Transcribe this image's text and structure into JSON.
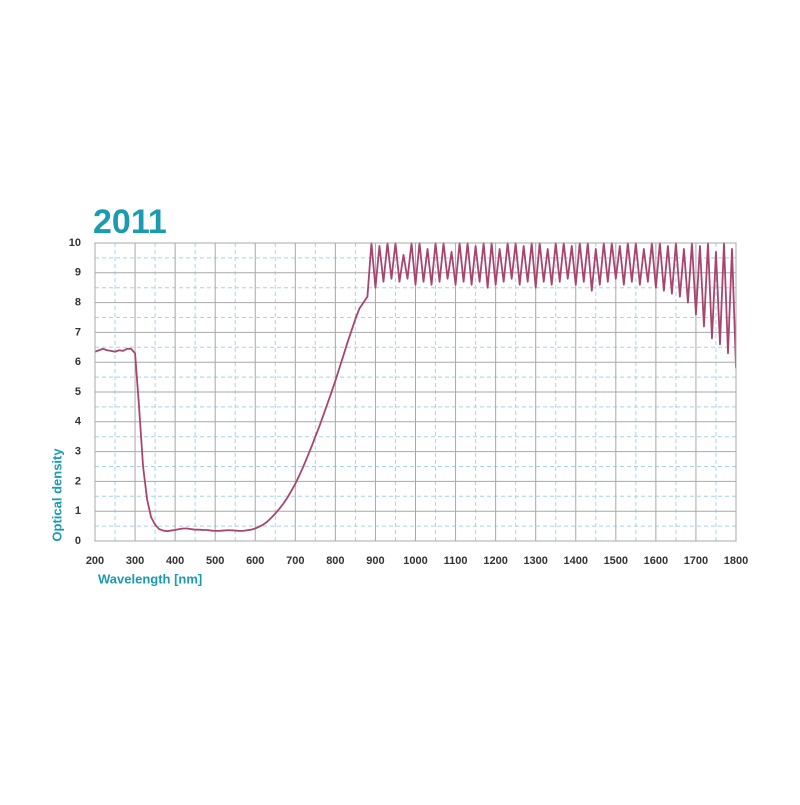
{
  "chart_data": {
    "type": "line",
    "title": "2011",
    "x_label": "Wavelength [nm]",
    "y_label": "Optical density",
    "xlim": [
      200,
      1800
    ],
    "ylim": [
      0,
      10
    ],
    "xticks": [
      200,
      300,
      400,
      500,
      600,
      700,
      800,
      900,
      1000,
      1100,
      1200,
      1300,
      1400,
      1500,
      1600,
      1700,
      1800
    ],
    "yticks": [
      0,
      1,
      2,
      3,
      4,
      5,
      6,
      7,
      8,
      9,
      10
    ],
    "grid": true,
    "series": [
      {
        "color": "#a8456f",
        "x": [
          200,
          210,
          220,
          230,
          240,
          250,
          260,
          270,
          280,
          290,
          300,
          310,
          320,
          330,
          340,
          350,
          360,
          370,
          380,
          390,
          400,
          410,
          420,
          430,
          440,
          450,
          460,
          470,
          480,
          490,
          500,
          510,
          520,
          530,
          540,
          550,
          560,
          570,
          580,
          590,
          600,
          610,
          620,
          630,
          640,
          650,
          660,
          670,
          680,
          690,
          700,
          710,
          720,
          730,
          740,
          750,
          760,
          770,
          780,
          790,
          800,
          810,
          820,
          830,
          840,
          850,
          860,
          870,
          880,
          890,
          900,
          910,
          920,
          930,
          940,
          950,
          960,
          970,
          980,
          990,
          1000,
          1010,
          1020,
          1030,
          1040,
          1050,
          1060,
          1070,
          1080,
          1090,
          1100,
          1110,
          1120,
          1130,
          1140,
          1150,
          1160,
          1170,
          1180,
          1190,
          1200,
          1210,
          1220,
          1230,
          1240,
          1250,
          1260,
          1270,
          1280,
          1290,
          1300,
          1310,
          1320,
          1330,
          1340,
          1350,
          1360,
          1370,
          1380,
          1390,
          1400,
          1410,
          1420,
          1430,
          1440,
          1450,
          1460,
          1470,
          1480,
          1490,
          1500,
          1510,
          1520,
          1530,
          1540,
          1550,
          1560,
          1570,
          1580,
          1590,
          1600,
          1610,
          1620,
          1630,
          1640,
          1650,
          1660,
          1670,
          1680,
          1690,
          1700,
          1710,
          1720,
          1730,
          1740,
          1750,
          1760,
          1770,
          1780,
          1790,
          1800
        ],
        "values": [
          6.35,
          6.4,
          6.45,
          6.4,
          6.38,
          6.35,
          6.4,
          6.38,
          6.45,
          6.45,
          6.3,
          4.5,
          2.5,
          1.4,
          0.8,
          0.55,
          0.4,
          0.35,
          0.33,
          0.35,
          0.37,
          0.4,
          0.42,
          0.42,
          0.4,
          0.38,
          0.38,
          0.37,
          0.37,
          0.35,
          0.34,
          0.34,
          0.35,
          0.36,
          0.36,
          0.35,
          0.34,
          0.34,
          0.36,
          0.38,
          0.42,
          0.48,
          0.55,
          0.65,
          0.78,
          0.92,
          1.08,
          1.25,
          1.45,
          1.68,
          1.92,
          2.2,
          2.5,
          2.82,
          3.15,
          3.5,
          3.85,
          4.22,
          4.6,
          4.98,
          5.38,
          5.8,
          6.22,
          6.65,
          7.05,
          7.45,
          7.8,
          8.0,
          8.2,
          10,
          8.5,
          9.9,
          8.7,
          10,
          8.8,
          10,
          8.7,
          9.6,
          8.8,
          10,
          8.6,
          10,
          8.7,
          9.8,
          8.6,
          10,
          8.7,
          10,
          8.8,
          9.7,
          8.6,
          10,
          8.7,
          10,
          8.6,
          9.9,
          8.7,
          10,
          8.5,
          10,
          8.6,
          9.8,
          8.7,
          10,
          8.8,
          10,
          8.6,
          9.9,
          8.7,
          10,
          8.5,
          10,
          8.7,
          9.8,
          8.6,
          10,
          8.7,
          10,
          8.8,
          9.9,
          8.6,
          10,
          8.7,
          10,
          8.4,
          9.8,
          8.6,
          10,
          8.7,
          10,
          8.8,
          9.9,
          8.6,
          10,
          8.7,
          10,
          8.6,
          9.8,
          8.7,
          10,
          8.5,
          10,
          8.4,
          9.9,
          8.3,
          10,
          8.2,
          9.8,
          8.0,
          10,
          7.6,
          9.9,
          7.2,
          10,
          6.8,
          9.7,
          6.6,
          10,
          6.3,
          9.8,
          5.8
        ]
      }
    ]
  }
}
